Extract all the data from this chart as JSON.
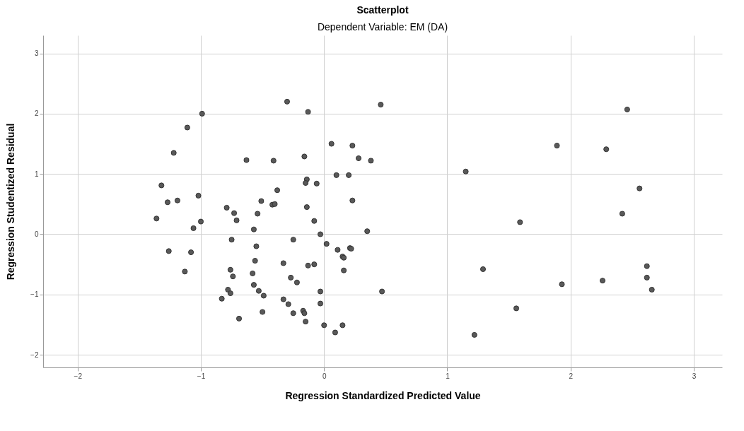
{
  "chart_data": {
    "type": "scatter",
    "title": "Scatterplot",
    "subtitle": "Dependent Variable: EM (DA)",
    "xlabel": "Regression Standardized Predicted Value",
    "ylabel": "Regression Studentized Residual",
    "xlim": [
      -2.28,
      3.23
    ],
    "ylim": [
      -2.21,
      3.3
    ],
    "xticks": [
      -2,
      -1,
      0,
      1,
      2,
      3
    ],
    "yticks": [
      -2,
      -1,
      0,
      1,
      2,
      3
    ],
    "grid": true,
    "series": [
      {
        "color": "#595959",
        "x": [
          -0.99,
          -1.11,
          -1.22,
          -0.63,
          -1.32,
          -1.02,
          -1.27,
          -1.19,
          -0.51,
          -0.79,
          -0.73,
          -0.54,
          -1.36,
          -0.71,
          -1.0,
          -1.06,
          -0.57,
          -0.75,
          -0.55,
          -1.26,
          -1.08,
          -0.56,
          -1.13,
          -0.76,
          -0.74,
          -0.58,
          -0.57,
          -0.78,
          -0.76,
          -0.53,
          -0.49,
          -0.83,
          -0.5,
          -0.69,
          -0.3,
          0.46,
          -0.13,
          0.06,
          0.23,
          -0.16,
          -0.41,
          0.28,
          0.38,
          0.1,
          0.2,
          -0.14,
          -0.15,
          -0.06,
          -0.38,
          -0.42,
          -0.4,
          -0.14,
          0.23,
          -0.08,
          0.35,
          -0.03,
          -0.25,
          0.02,
          0.11,
          0.21,
          0.22,
          0.15,
          0.16,
          -0.33,
          -0.13,
          -0.08,
          0.16,
          -0.27,
          -0.22,
          -0.03,
          0.47,
          -0.33,
          -0.29,
          -0.03,
          -0.25,
          -0.17,
          -0.16,
          -0.15,
          0.0,
          0.15,
          0.09,
          2.46,
          1.89,
          2.29,
          1.15,
          2.56,
          2.42,
          1.59,
          1.29,
          2.62,
          2.62,
          1.93,
          2.26,
          2.66,
          1.56,
          1.22
        ],
        "values": [
          2.0,
          1.77,
          1.35,
          1.23,
          0.81,
          0.64,
          0.53,
          0.56,
          0.55,
          0.44,
          0.35,
          0.34,
          0.26,
          0.23,
          0.21,
          0.1,
          0.08,
          -0.09,
          -0.2,
          -0.28,
          -0.3,
          -0.44,
          -0.62,
          -0.59,
          -0.7,
          -0.65,
          -0.84,
          -0.92,
          -0.98,
          -0.94,
          -1.02,
          -1.07,
          -1.29,
          -1.4,
          2.2,
          2.15,
          2.03,
          1.5,
          1.47,
          1.29,
          1.22,
          1.26,
          1.22,
          0.98,
          0.98,
          0.91,
          0.85,
          0.84,
          0.73,
          0.49,
          0.5,
          0.45,
          0.56,
          0.22,
          0.05,
          0.0,
          -0.09,
          -0.16,
          -0.26,
          -0.23,
          -0.24,
          -0.37,
          -0.39,
          -0.48,
          -0.52,
          -0.5,
          -0.6,
          -0.72,
          -0.8,
          -0.95,
          -0.95,
          -1.08,
          -1.16,
          -1.15,
          -1.31,
          -1.27,
          -1.31,
          -1.45,
          -1.51,
          -1.51,
          -1.63,
          2.07,
          1.47,
          1.41,
          1.04,
          0.76,
          0.34,
          0.2,
          -0.58,
          -0.53,
          -0.72,
          -0.83,
          -0.77,
          -0.92,
          -1.23,
          -1.67
        ]
      }
    ]
  }
}
